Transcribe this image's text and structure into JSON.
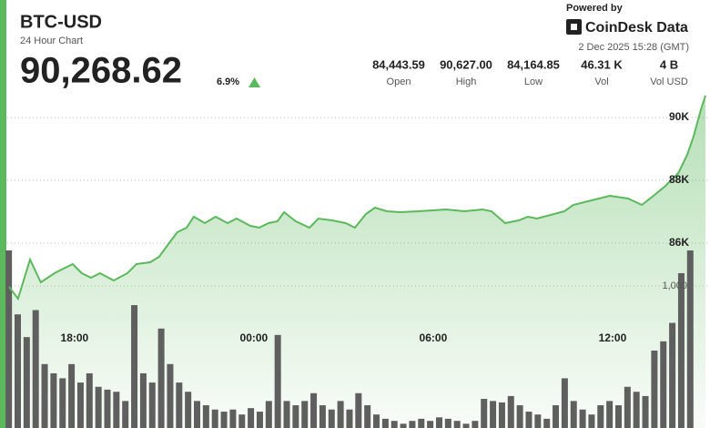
{
  "header": {
    "title": "BTC-USD",
    "subtitle": "24 Hour Chart",
    "last_price": "90,268.62",
    "change": "6.9%",
    "stats": [
      {
        "value": "84,443.59",
        "label": "Open"
      },
      {
        "value": "90,627.00",
        "label": "High"
      },
      {
        "value": "84,164.85",
        "label": "Low"
      },
      {
        "value": "46.31 K",
        "label": "Vol"
      },
      {
        "value": "4 B",
        "label": "Vol USD"
      }
    ],
    "powered_by": "Powered by",
    "brand": "CoinDesk Data",
    "timestamp": "2 Dec 2025 15:28 (GMT)"
  },
  "chart_data": {
    "type": "line",
    "xlim": [
      -2.25,
      21.2
    ],
    "xticks": [
      {
        "value": 0,
        "label": "18:00"
      },
      {
        "value": 6,
        "label": "00:00"
      },
      {
        "value": 12,
        "label": "06:00"
      },
      {
        "value": 18,
        "label": "12:00"
      }
    ],
    "ylim": [
      80115,
      90843
    ],
    "yticks": [
      {
        "value": 86000,
        "label": "86K"
      },
      {
        "value": 88000,
        "label": "88K"
      },
      {
        "value": 90000,
        "label": "90K"
      }
    ],
    "y2lim": [
      0,
      1250
    ],
    "y2ticks": [
      {
        "value": 1000,
        "label": "1,000"
      }
    ],
    "grid": true,
    "series": [
      {
        "type": "line",
        "color": "#5cb85c",
        "x": [
          -2.19,
          -1.89,
          -1.49,
          -1.13,
          -0.67,
          -0.37,
          -0.06,
          0.24,
          0.55,
          0.85,
          1.31,
          1.77,
          2.07,
          2.53,
          2.83,
          3.14,
          3.44,
          3.75,
          3.99,
          4.36,
          4.72,
          5.12,
          5.42,
          5.88,
          6.18,
          6.49,
          6.79,
          7.01,
          7.4,
          7.86,
          8.16,
          8.62,
          9.07,
          9.38,
          9.75,
          10.05,
          10.45,
          10.9,
          11.51,
          12.43,
          13.04,
          13.65,
          13.95,
          14.41,
          14.86,
          15.17,
          15.47,
          15.93,
          16.39,
          16.69,
          17.3,
          17.91,
          18.52,
          18.98,
          19.37,
          19.74,
          20.2,
          20.5,
          20.71,
          20.96,
          21.11
        ],
        "values": [
          84608,
          84232,
          85478,
          84753,
          85043,
          85188,
          85333,
          85043,
          84898,
          85043,
          84811,
          85043,
          85333,
          85391,
          85565,
          85971,
          86348,
          86493,
          86841,
          86638,
          86841,
          86638,
          86783,
          86551,
          86493,
          86638,
          86696,
          86986,
          86696,
          86493,
          86783,
          86725,
          86638,
          86493,
          86928,
          87131,
          87015,
          86986,
          87015,
          87073,
          87015,
          87073,
          87015,
          86638,
          86725,
          86841,
          86783,
          86899,
          87015,
          87218,
          87363,
          87508,
          87421,
          87218,
          87508,
          87798,
          88233,
          88813,
          89392,
          90262,
          90697
        ]
      },
      {
        "type": "bar",
        "axis": "y2",
        "color": "#5f5f5f",
        "x": [
          -2.2,
          -1.9,
          -1.6,
          -1.3,
          -1.0,
          -0.7,
          -0.4,
          -0.1,
          0.2,
          0.5,
          0.8,
          1.1,
          1.4,
          1.7,
          2.0,
          2.3,
          2.6,
          2.9,
          3.2,
          3.5,
          3.8,
          4.1,
          4.4,
          4.7,
          5.0,
          5.3,
          5.6,
          5.9,
          6.2,
          6.5,
          6.8,
          7.1,
          7.4,
          7.7,
          8.0,
          8.3,
          8.6,
          8.9,
          9.2,
          9.5,
          9.8,
          10.1,
          10.4,
          10.7,
          11.0,
          11.3,
          11.6,
          11.9,
          12.2,
          12.5,
          12.8,
          13.1,
          13.4,
          13.7,
          14.0,
          14.3,
          14.6,
          14.9,
          15.2,
          15.5,
          15.8,
          16.1,
          16.4,
          16.7,
          17.0,
          17.3,
          17.6,
          17.9,
          18.2,
          18.5,
          18.8,
          19.1,
          19.4,
          19.7,
          20.0,
          20.3,
          20.6
        ],
        "values": [
          1250,
          800,
          640,
          830,
          450,
          385,
          350,
          450,
          320,
          385,
          290,
          270,
          255,
          190,
          865,
          385,
          320,
          700,
          450,
          320,
          255,
          190,
          160,
          130,
          115,
          130,
          95,
          140,
          115,
          190,
          655,
          190,
          160,
          190,
          245,
          160,
          130,
          190,
          130,
          245,
          160,
          95,
          65,
          50,
          30,
          50,
          65,
          50,
          75,
          65,
          50,
          30,
          50,
          205,
          190,
          180,
          225,
          160,
          115,
          95,
          65,
          160,
          350,
          190,
          130,
          95,
          160,
          190,
          160,
          290,
          255,
          225,
          545,
          610,
          740,
          1090,
          1250
        ]
      }
    ]
  }
}
